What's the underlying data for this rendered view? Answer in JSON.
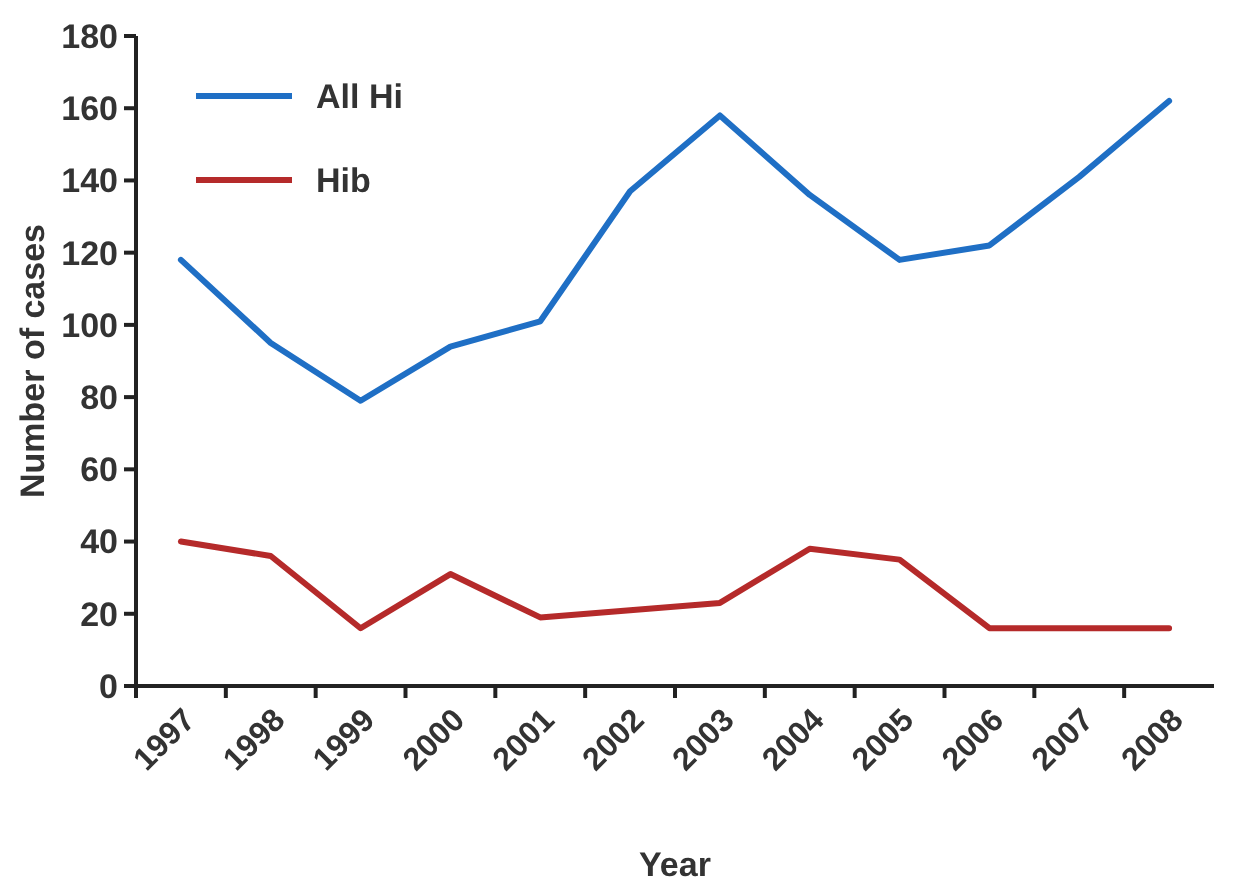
{
  "chart_data": {
    "type": "line",
    "xlabel": "Year",
    "ylabel": "Number of cases",
    "categories": [
      "1997",
      "1998",
      "1999",
      "2000",
      "2001",
      "2002",
      "2003",
      "2004",
      "2005",
      "2006",
      "2007",
      "2008"
    ],
    "series": [
      {
        "name": "All Hi",
        "color": "#1f6fc5",
        "values": [
          118,
          95,
          79,
          94,
          101,
          137,
          158,
          136,
          118,
          122,
          141,
          162
        ]
      },
      {
        "name": "Hib",
        "color": "#b52a2a",
        "values": [
          40,
          36,
          16,
          31,
          19,
          21,
          23,
          38,
          35,
          16,
          16,
          16
        ]
      }
    ],
    "ylim": [
      0,
      180
    ],
    "yticks": [
      0,
      20,
      40,
      60,
      80,
      100,
      120,
      140,
      160,
      180
    ],
    "grid": false,
    "legend": "top left",
    "marker": "none",
    "line_style": "solid"
  }
}
